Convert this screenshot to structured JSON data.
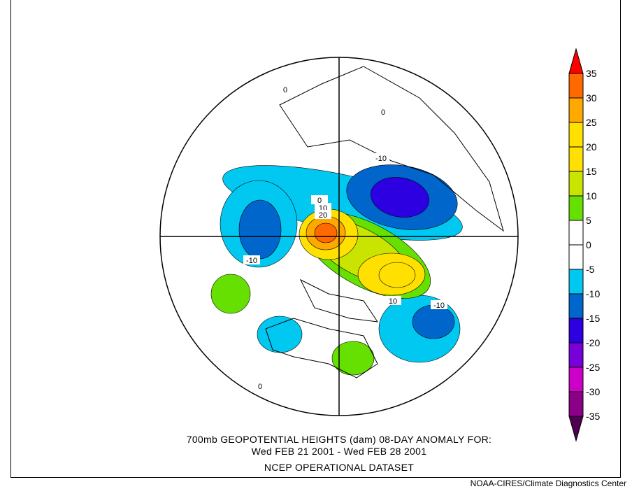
{
  "title_line1": "700mb GEOPOTENTIAL HEIGHTS (dam)    08-DAY ANOMALY FOR:",
  "title_line2": "Wed FEB 21 2001 - Wed FEB 28 2001",
  "title_line3": "NCEP OPERATIONAL DATASET",
  "credit": "NOAA-CIRES/Climate Diagnostics Center",
  "colorbar": {
    "labels": [
      "35",
      "30",
      "25",
      "20",
      "15",
      "10",
      "5",
      "0",
      "-5",
      "-10",
      "-15",
      "-20",
      "-25",
      "-30",
      "-35"
    ],
    "colors": [
      "#ff6a00",
      "#ffa800",
      "#ffe000",
      "#ffe000",
      "#c8e400",
      "#66e000",
      "#ffffff",
      "#ffffff",
      "#00c8f0",
      "#0066cc",
      "#2c00e0",
      "#7800d8",
      "#cc00c8",
      "#8c0088"
    ],
    "over_color": "#ff0000",
    "under_color": "#500050"
  },
  "contour_labels": [
    "-10",
    "-10",
    "-10",
    "-10",
    "10",
    "10",
    "20",
    "0",
    "0",
    "0",
    "0"
  ]
}
